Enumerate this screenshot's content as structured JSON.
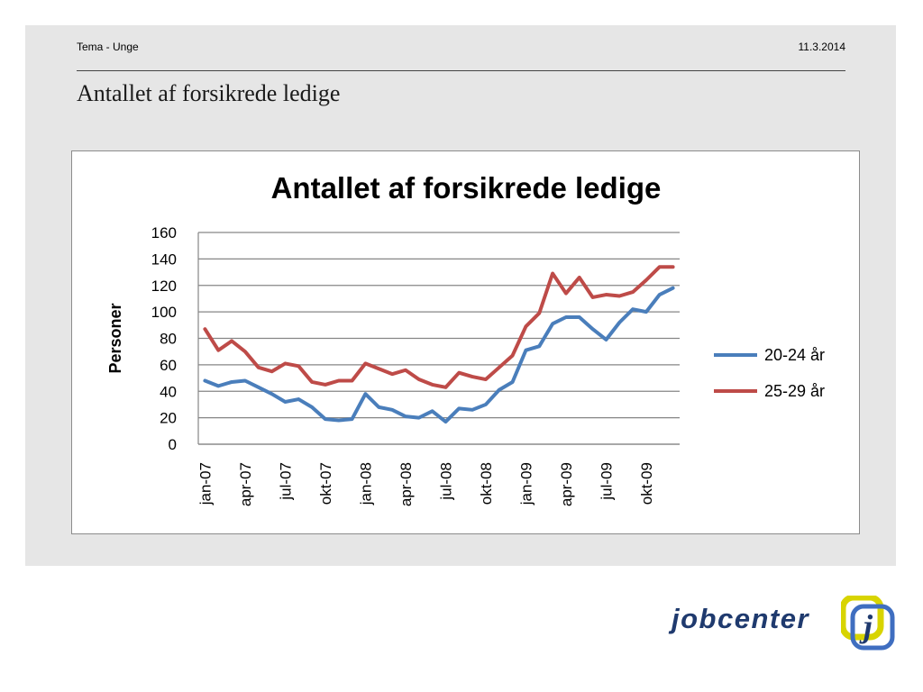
{
  "header": {
    "topic": "Tema - Unge",
    "date": "11.3.2014"
  },
  "slide": {
    "title": "Antallet af forsikrede ledige"
  },
  "logo": {
    "wordmark": "jobcenter",
    "mark_letter": "j",
    "colors": {
      "yellow": "#d8d400",
      "blue": "#3f6ec0",
      "text": "#1f3a6e"
    }
  },
  "chart_data": {
    "type": "line",
    "title": "Antallet af forsikrede ledige",
    "ylabel": "Personer",
    "xlabel": "",
    "ylim": [
      0,
      160
    ],
    "yticks": [
      0,
      20,
      40,
      60,
      80,
      100,
      120,
      140,
      160
    ],
    "grid": true,
    "legend_position": "right",
    "x": [
      "jan-07",
      "feb-07",
      "mar-07",
      "apr-07",
      "maj-07",
      "jun-07",
      "jul-07",
      "aug-07",
      "sep-07",
      "okt-07",
      "nov-07",
      "dec-07",
      "jan-08",
      "feb-08",
      "mar-08",
      "apr-08",
      "maj-08",
      "jun-08",
      "jul-08",
      "aug-08",
      "sep-08",
      "okt-08",
      "nov-08",
      "dec-08",
      "jan-09",
      "feb-09",
      "mar-09",
      "apr-09",
      "maj-09",
      "jun-09",
      "jul-09",
      "aug-09",
      "sep-09",
      "okt-09",
      "nov-09",
      "dec-09"
    ],
    "xtick_labels": [
      "jan-07",
      "apr-07",
      "jul-07",
      "okt-07",
      "jan-08",
      "apr-08",
      "jul-08",
      "okt-08",
      "jan-09",
      "apr-09",
      "jul-09",
      "okt-09"
    ],
    "series": [
      {
        "name": "20-24 år",
        "color": "#4a7ebb",
        "values": [
          48,
          44,
          47,
          48,
          43,
          38,
          32,
          34,
          28,
          19,
          18,
          19,
          38,
          28,
          26,
          21,
          20,
          25,
          17,
          27,
          26,
          30,
          41,
          47,
          71,
          74,
          91,
          96,
          96,
          87,
          79,
          92,
          102,
          100,
          113,
          118
        ]
      },
      {
        "name": "25-29 år",
        "color": "#be4b48",
        "values": [
          87,
          71,
          78,
          70,
          58,
          55,
          61,
          59,
          47,
          45,
          48,
          48,
          61,
          57,
          53,
          56,
          49,
          45,
          43,
          54,
          51,
          49,
          58,
          67,
          89,
          99,
          129,
          114,
          126,
          111,
          113,
          112,
          115,
          124,
          134,
          134
        ]
      }
    ]
  }
}
